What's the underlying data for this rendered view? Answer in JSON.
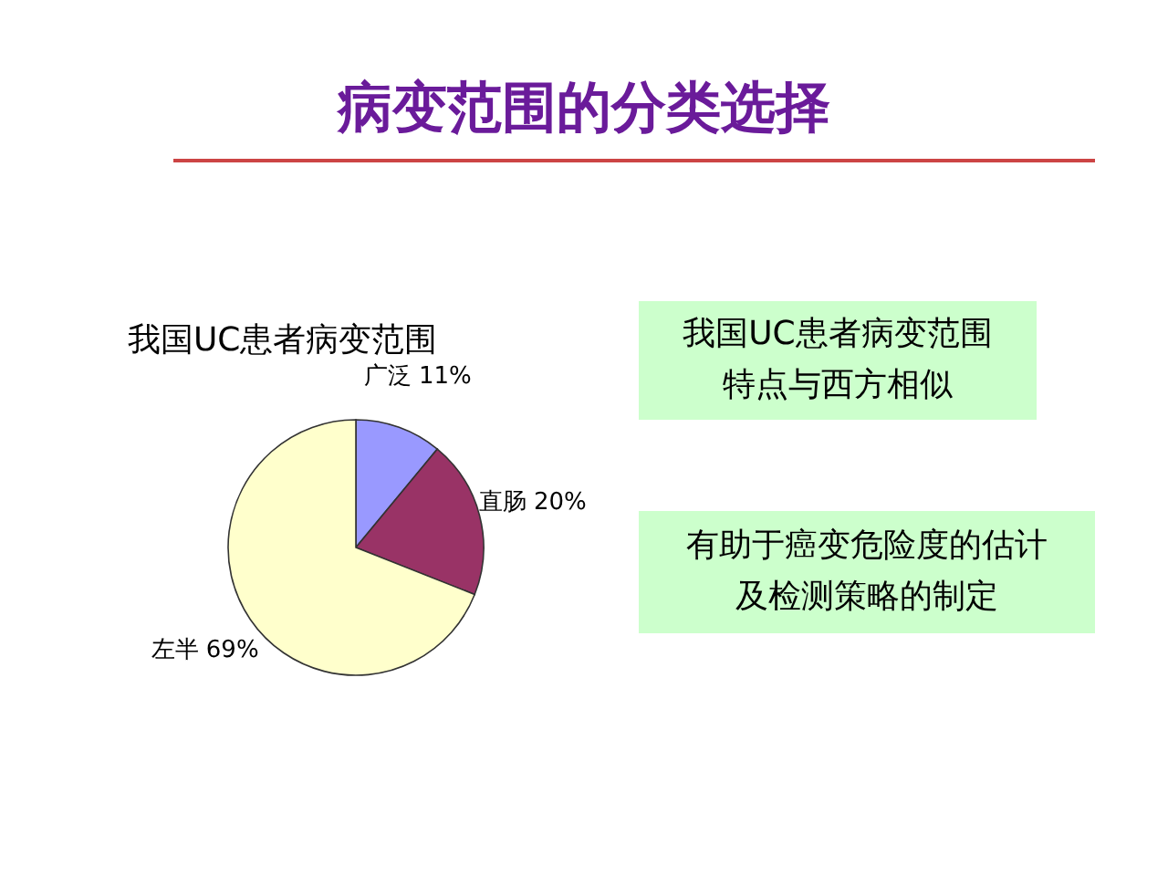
{
  "chart_data": {
    "type": "pie",
    "title": "病变范围的分类选择",
    "subtitle": "我国UC患者病变范围",
    "categories": [
      "广泛",
      "直肠",
      "左半"
    ],
    "values": [
      11,
      20,
      69
    ],
    "colors": [
      "#9999ff",
      "#993366",
      "#ffffcc"
    ],
    "value_labels": [
      "11%",
      "20%",
      "69%"
    ],
    "annotations": [
      "我国UC患者病变范围特点与西方相似",
      "有助于癌变危险度的估计及检测策略的制定"
    ]
  }
}
